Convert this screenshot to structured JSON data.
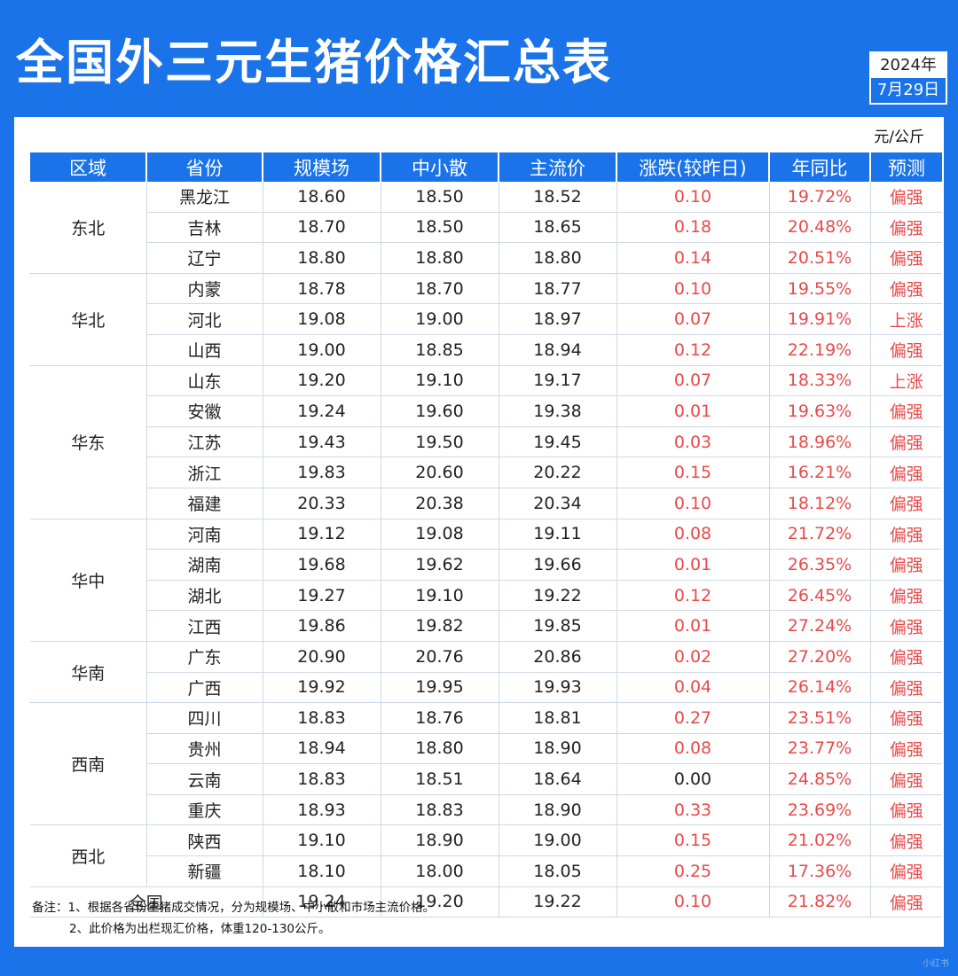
{
  "title": "全国外三元生猪价格汇总表",
  "date": {
    "year": "2024年",
    "monthday": "7月29日"
  },
  "unit": "元/公斤",
  "headers": [
    "区域",
    "省份",
    "规模场",
    "中小散",
    "主流价",
    "涨跌(较昨日)",
    "年同比",
    "预测"
  ],
  "regions": [
    {
      "name": "东北",
      "rows": [
        {
          "province": "黑龙江",
          "large": "18.60",
          "small": "18.50",
          "main": "18.52",
          "change": "0.10",
          "yoy": "19.72%",
          "forecast": "偏强"
        },
        {
          "province": "吉林",
          "large": "18.70",
          "small": "18.50",
          "main": "18.65",
          "change": "0.18",
          "yoy": "20.48%",
          "forecast": "偏强"
        },
        {
          "province": "辽宁",
          "large": "18.80",
          "small": "18.80",
          "main": "18.80",
          "change": "0.14",
          "yoy": "20.51%",
          "forecast": "偏强"
        }
      ]
    },
    {
      "name": "华北",
      "rows": [
        {
          "province": "内蒙",
          "large": "18.78",
          "small": "18.70",
          "main": "18.77",
          "change": "0.10",
          "yoy": "19.55%",
          "forecast": "偏强"
        },
        {
          "province": "河北",
          "large": "19.08",
          "small": "19.00",
          "main": "18.97",
          "change": "0.07",
          "yoy": "19.91%",
          "forecast": "上涨"
        },
        {
          "province": "山西",
          "large": "19.00",
          "small": "18.85",
          "main": "18.94",
          "change": "0.12",
          "yoy": "22.19%",
          "forecast": "偏强"
        }
      ]
    },
    {
      "name": "华东",
      "rows": [
        {
          "province": "山东",
          "large": "19.20",
          "small": "19.10",
          "main": "19.17",
          "change": "0.07",
          "yoy": "18.33%",
          "forecast": "上涨"
        },
        {
          "province": "安徽",
          "large": "19.24",
          "small": "19.60",
          "main": "19.38",
          "change": "0.01",
          "yoy": "19.63%",
          "forecast": "偏强"
        },
        {
          "province": "江苏",
          "large": "19.43",
          "small": "19.50",
          "main": "19.45",
          "change": "0.03",
          "yoy": "18.96%",
          "forecast": "偏强"
        },
        {
          "province": "浙江",
          "large": "19.83",
          "small": "20.60",
          "main": "20.22",
          "change": "0.15",
          "yoy": "16.21%",
          "forecast": "偏强"
        },
        {
          "province": "福建",
          "large": "20.33",
          "small": "20.38",
          "main": "20.34",
          "change": "0.10",
          "yoy": "18.12%",
          "forecast": "偏强"
        }
      ]
    },
    {
      "name": "华中",
      "rows": [
        {
          "province": "河南",
          "large": "19.12",
          "small": "19.08",
          "main": "19.11",
          "change": "0.08",
          "yoy": "21.72%",
          "forecast": "偏强"
        },
        {
          "province": "湖南",
          "large": "19.68",
          "small": "19.62",
          "main": "19.66",
          "change": "0.01",
          "yoy": "26.35%",
          "forecast": "偏强"
        },
        {
          "province": "湖北",
          "large": "19.27",
          "small": "19.10",
          "main": "19.22",
          "change": "0.12",
          "yoy": "26.45%",
          "forecast": "偏强"
        },
        {
          "province": "江西",
          "large": "19.86",
          "small": "19.82",
          "main": "19.85",
          "change": "0.01",
          "yoy": "27.24%",
          "forecast": "偏强"
        }
      ]
    },
    {
      "name": "华南",
      "rows": [
        {
          "province": "广东",
          "large": "20.90",
          "small": "20.76",
          "main": "20.86",
          "change": "0.02",
          "yoy": "27.20%",
          "forecast": "偏强"
        },
        {
          "province": "广西",
          "large": "19.92",
          "small": "19.95",
          "main": "19.93",
          "change": "0.04",
          "yoy": "26.14%",
          "forecast": "偏强"
        }
      ]
    },
    {
      "name": "西南",
      "rows": [
        {
          "province": "四川",
          "large": "18.83",
          "small": "18.76",
          "main": "18.81",
          "change": "0.27",
          "yoy": "23.51%",
          "forecast": "偏强"
        },
        {
          "province": "贵州",
          "large": "18.94",
          "small": "18.80",
          "main": "18.90",
          "change": "0.08",
          "yoy": "23.77%",
          "forecast": "偏强"
        },
        {
          "province": "云南",
          "large": "18.83",
          "small": "18.51",
          "main": "18.64",
          "change": "0.00",
          "yoy": "24.85%",
          "forecast": "偏强"
        },
        {
          "province": "重庆",
          "large": "18.93",
          "small": "18.83",
          "main": "18.90",
          "change": "0.33",
          "yoy": "23.69%",
          "forecast": "偏强"
        }
      ]
    },
    {
      "name": "西北",
      "rows": [
        {
          "province": "陕西",
          "large": "19.10",
          "small": "18.90",
          "main": "19.00",
          "change": "0.15",
          "yoy": "21.02%",
          "forecast": "偏强"
        },
        {
          "province": "新疆",
          "large": "18.10",
          "small": "18.00",
          "main": "18.05",
          "change": "0.25",
          "yoy": "17.36%",
          "forecast": "偏强"
        }
      ]
    }
  ],
  "total": {
    "label": "全国",
    "large": "19.24",
    "small": "19.20",
    "main": "19.22",
    "change": "0.10",
    "yoy": "21.82%",
    "forecast": "偏强"
  },
  "notes": [
    "备注：1、根据各省份生猪成交情况，分为规模场、中小散和市场主流价格。",
    "2、此价格为出栏现汇价格，体重120-130公斤。"
  ],
  "watermark": "小红书",
  "colors": {
    "header_blue": "#1a73e8",
    "up_red": "#e84a4a",
    "text": "#222222"
  }
}
